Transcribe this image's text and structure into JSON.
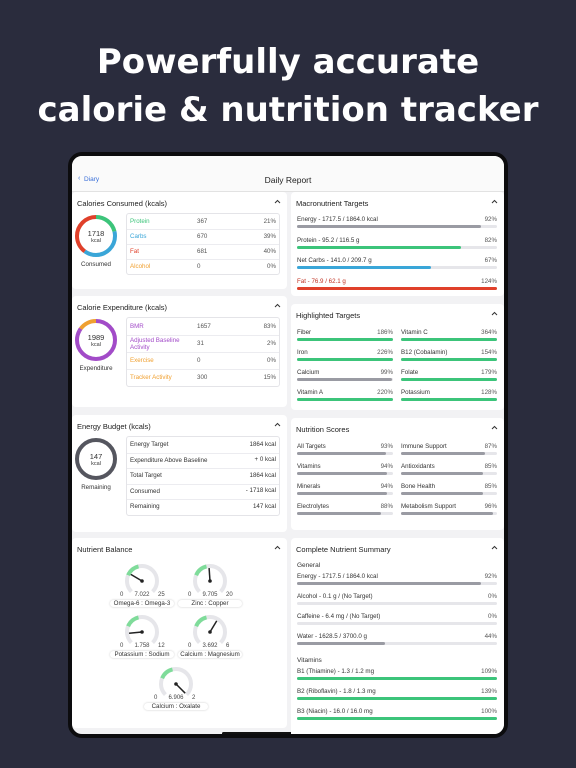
{
  "headline": [
    "Powerfully accurate",
    "calorie & nutrition tracker"
  ],
  "nav": {
    "back": "Diary",
    "title": "Daily Report"
  },
  "left": [
    {
      "title": "Calories Consumed (kcals)",
      "ring": {
        "value": "1718",
        "unit": "kcal",
        "label": "Consumed"
      },
      "rows": [
        {
          "name": "Protein",
          "amount": "367",
          "pct": {
            "value": 21,
            "label": "21%"
          },
          "color": "#3cc47a"
        },
        {
          "name": "Carbs",
          "amount": "670",
          "pct": {
            "value": 39,
            "label": "39%"
          },
          "color": "#3aa6d8"
        },
        {
          "name": "Fat",
          "amount": "681",
          "pct": {
            "value": 40,
            "label": "40%"
          },
          "color": "#e0402a"
        },
        {
          "name": "Alcohol",
          "amount": "0",
          "pct": {
            "value": 0,
            "label": "0%"
          },
          "color": "#f0a030"
        }
      ]
    },
    {
      "title": "Calorie Expenditure (kcals)",
      "ring": {
        "value": "1989",
        "unit": "kcal",
        "label": "Expenditure"
      },
      "rows": [
        {
          "name": "BMR",
          "amount": "1657",
          "pct": {
            "value": 83,
            "label": "83%"
          },
          "color": "#a24bc8"
        },
        {
          "name": "Adjusted Baseline Activity",
          "amount": "31",
          "pct": {
            "value": 2,
            "label": "2%"
          },
          "color": "#a24bc8"
        },
        {
          "name": "Exercise",
          "amount": "0",
          "pct": {
            "value": 0,
            "label": "0%"
          },
          "color": "#f0a030"
        },
        {
          "name": "Tracker Activity",
          "amount": "300",
          "pct": {
            "value": 15,
            "label": "15%"
          },
          "color": "#f0a030"
        }
      ]
    },
    {
      "title": "Energy Budget (kcals)",
      "ring": {
        "value": "147",
        "unit": "kcal",
        "label": "Remaining"
      },
      "rows": [
        {
          "name": "Energy Target",
          "amount": "1864 kcal"
        },
        {
          "name": "Expenditure Above Baseline",
          "amount": "+ 0 kcal"
        },
        {
          "name": "Total Target",
          "amount": "1864 kcal"
        },
        {
          "name": "Consumed",
          "amount": "- 1718 kcal"
        },
        {
          "name": "Remaining",
          "amount": "147 kcal"
        }
      ]
    }
  ],
  "balance": {
    "title": "Nutrient Balance",
    "gauges": [
      {
        "name": "Omega-6 : Omega-3",
        "min": 0,
        "value": 7.022,
        "max": 25
      },
      {
        "name": "Zinc : Copper",
        "min": 0,
        "value": 9.705,
        "max": 20
      },
      {
        "name": "Potassium : Sodium",
        "min": 0,
        "value": 1.758,
        "max": 12
      },
      {
        "name": "Calcium : Magnesium",
        "min": 0,
        "value": 3.692,
        "max": 6
      },
      {
        "name": "Calcium : Oxalate",
        "min": 0,
        "value": 6.906,
        "max": 2
      }
    ]
  },
  "macros": {
    "title": "Macronutrient Targets",
    "items": [
      {
        "label": "Energy - 1717.5 / 1864.0 kcal",
        "pct": {
          "value": 92,
          "label": "92%"
        },
        "color": "#9a9ba3"
      },
      {
        "label": "Protein - 95.2 / 116.5 g",
        "pct": {
          "value": 82,
          "label": "82%"
        },
        "color": "#3cc47a"
      },
      {
        "label": "Net Carbs - 141.0 / 209.7 g",
        "pct": {
          "value": 67,
          "label": "67%"
        },
        "color": "#3aa6d8"
      },
      {
        "label": "Fat - 76.9 / 62.1 g",
        "pct": {
          "value": 124,
          "label": "124%"
        },
        "color": "#e0402a"
      }
    ]
  },
  "highlighted": {
    "title": "Highlighted Targets",
    "items": [
      {
        "label": "Fiber",
        "pct": {
          "value": 186,
          "label": "186%"
        },
        "color": "#3cc47a"
      },
      {
        "label": "Vitamin C",
        "pct": {
          "value": 364,
          "label": "364%"
        },
        "color": "#3cc47a"
      },
      {
        "label": "Iron",
        "pct": {
          "value": 226,
          "label": "226%"
        },
        "color": "#3cc47a"
      },
      {
        "label": "B12 (Cobalamin)",
        "pct": {
          "value": 154,
          "label": "154%"
        },
        "color": "#3cc47a"
      },
      {
        "label": "Calcium",
        "pct": {
          "value": 99,
          "label": "99%"
        },
        "color": "#9a9ba3"
      },
      {
        "label": "Folate",
        "pct": {
          "value": 179,
          "label": "179%"
        },
        "color": "#3cc47a"
      },
      {
        "label": "Vitamin A",
        "pct": {
          "value": 220,
          "label": "220%"
        },
        "color": "#3cc47a"
      },
      {
        "label": "Potassium",
        "pct": {
          "value": 128,
          "label": "128%"
        },
        "color": "#3cc47a"
      }
    ]
  },
  "scores": {
    "title": "Nutrition Scores",
    "items": [
      {
        "label": "All Targets",
        "pct": {
          "value": 93,
          "label": "93%"
        },
        "color": "#9a9ba3"
      },
      {
        "label": "Immune Support",
        "pct": {
          "value": 87,
          "label": "87%"
        },
        "color": "#9a9ba3"
      },
      {
        "label": "Vitamins",
        "pct": {
          "value": 94,
          "label": "94%"
        },
        "color": "#9a9ba3"
      },
      {
        "label": "Antioxidants",
        "pct": {
          "value": 85,
          "label": "85%"
        },
        "color": "#9a9ba3"
      },
      {
        "label": "Minerals",
        "pct": {
          "value": 94,
          "label": "94%"
        },
        "color": "#9a9ba3"
      },
      {
        "label": "Bone Health",
        "pct": {
          "value": 85,
          "label": "85%"
        },
        "color": "#9a9ba3"
      },
      {
        "label": "Electrolytes",
        "pct": {
          "value": 88,
          "label": "88%"
        },
        "color": "#9a9ba3"
      },
      {
        "label": "Metabolism Support",
        "pct": {
          "value": 96,
          "label": "96%"
        },
        "color": "#9a9ba3"
      }
    ]
  },
  "summary": {
    "title": "Complete Nutrient Summary",
    "groups": [
      {
        "name": "General",
        "items": [
          {
            "label": "Energy - 1717.5 / 1864.0 kcal",
            "pct": {
              "value": 92,
              "label": "92%"
            },
            "color": "#9a9ba3"
          },
          {
            "label": "Alcohol - 0.1 g / (No Target)",
            "pct": {
              "value": 0,
              "label": "0%"
            },
            "color": "#9a9ba3"
          },
          {
            "label": "Caffeine - 6.4 mg / (No Target)",
            "pct": {
              "value": 0,
              "label": "0%"
            },
            "color": "#9a9ba3"
          },
          {
            "label": "Water - 1628.5 / 3700.0 g",
            "pct": {
              "value": 44,
              "label": "44%"
            },
            "color": "#9a9ba3"
          }
        ]
      },
      {
        "name": "Vitamins",
        "items": [
          {
            "label": "B1 (Thiamine) - 1.3 / 1.2 mg",
            "pct": {
              "value": 109,
              "label": "109%"
            },
            "color": "#3cc47a"
          },
          {
            "label": "B2 (Riboflavin) - 1.8 / 1.3 mg",
            "pct": {
              "value": 139,
              "label": "139%"
            },
            "color": "#3cc47a"
          },
          {
            "label": "B3 (Niacin) - 16.0 / 16.0 mg",
            "pct": {
              "value": 100,
              "label": "100%"
            },
            "color": "#3cc47a"
          }
        ]
      }
    ]
  }
}
